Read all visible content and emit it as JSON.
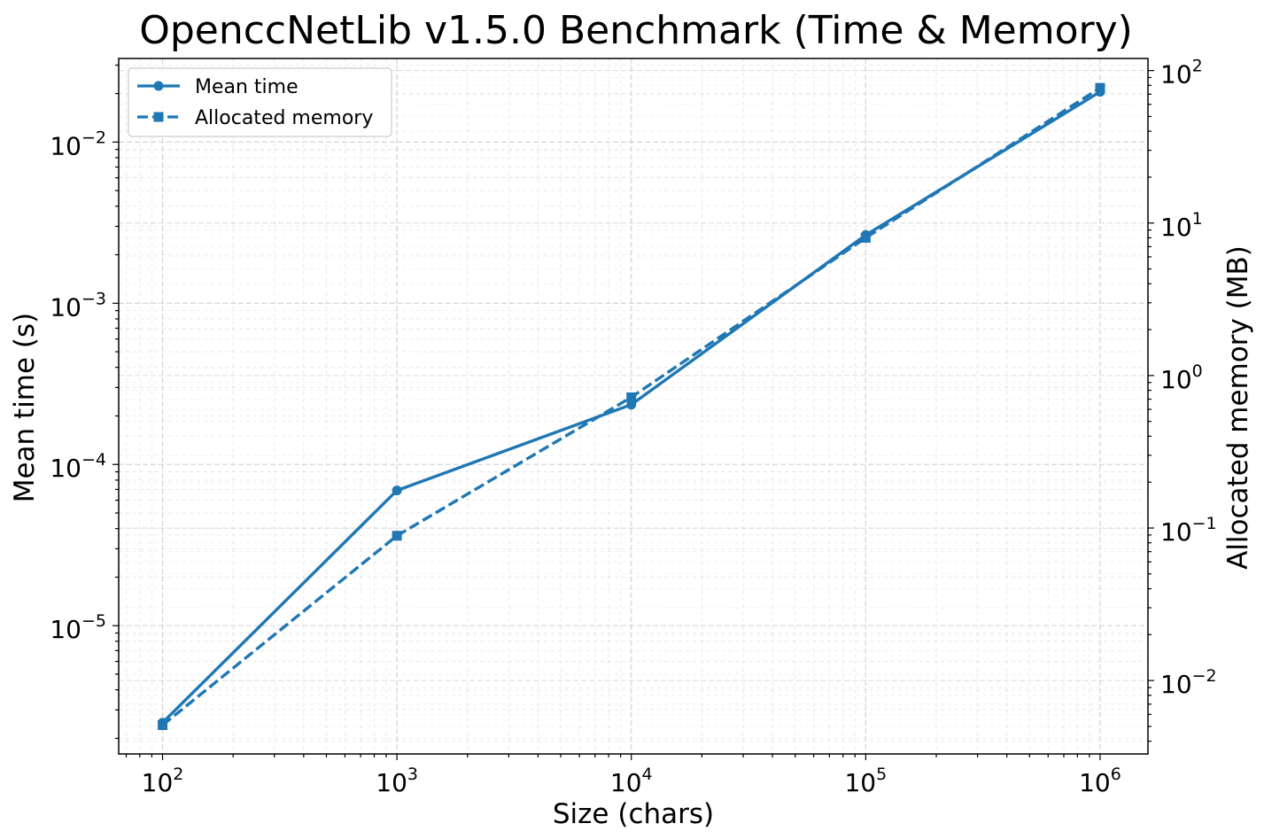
{
  "chart_data": {
    "type": "line",
    "title": "OpenccNetLib v1.5.0 Benchmark (Time & Memory)",
    "xlabel": "Size (chars)",
    "ylabel": "Mean time (s)",
    "y2label": "Allocated memory (MB)",
    "xscale": "log",
    "yscale": "log",
    "y2scale": "log",
    "xlim": [
      65,
      1600000
    ],
    "ylim": [
      1.6e-06,
      0.033
    ],
    "y2lim": [
      0.0033,
      120
    ],
    "x": [
      100,
      1000,
      10000,
      100000,
      1000000
    ],
    "series": [
      {
        "name": "Mean time",
        "axis": "left",
        "style": "solid",
        "marker": "circle",
        "values": [
          2.5e-06,
          6.9e-05,
          0.000235,
          0.00265,
          0.0205
        ]
      },
      {
        "name": "Allocated memory",
        "axis": "right",
        "style": "dashed",
        "marker": "square",
        "values": [
          0.0051,
          0.089,
          0.72,
          8.0,
          77
        ]
      }
    ],
    "xticks": [
      {
        "value": 100,
        "base": "10",
        "exp": "2"
      },
      {
        "value": 1000,
        "base": "10",
        "exp": "3"
      },
      {
        "value": 10000,
        "base": "10",
        "exp": "4"
      },
      {
        "value": 100000,
        "base": "10",
        "exp": "5"
      },
      {
        "value": 1000000,
        "base": "10",
        "exp": "6"
      }
    ],
    "yticks": [
      {
        "value": 1e-05,
        "base": "10",
        "exp": "−5"
      },
      {
        "value": 0.0001,
        "base": "10",
        "exp": "−4"
      },
      {
        "value": 0.001,
        "base": "10",
        "exp": "−3"
      },
      {
        "value": 0.01,
        "base": "10",
        "exp": "−2"
      }
    ],
    "y2ticks": [
      {
        "value": 0.01,
        "base": "10",
        "exp": "−2"
      },
      {
        "value": 0.1,
        "base": "10",
        "exp": "−1"
      },
      {
        "value": 1,
        "base": "10",
        "exp": "0"
      },
      {
        "value": 10,
        "base": "10",
        "exp": "1"
      },
      {
        "value": 100,
        "base": "10",
        "exp": "2"
      }
    ],
    "grid": true,
    "legend_position": "top-left",
    "colors": {
      "line": "#1f77b4",
      "grid": "#d0d0d0"
    }
  }
}
